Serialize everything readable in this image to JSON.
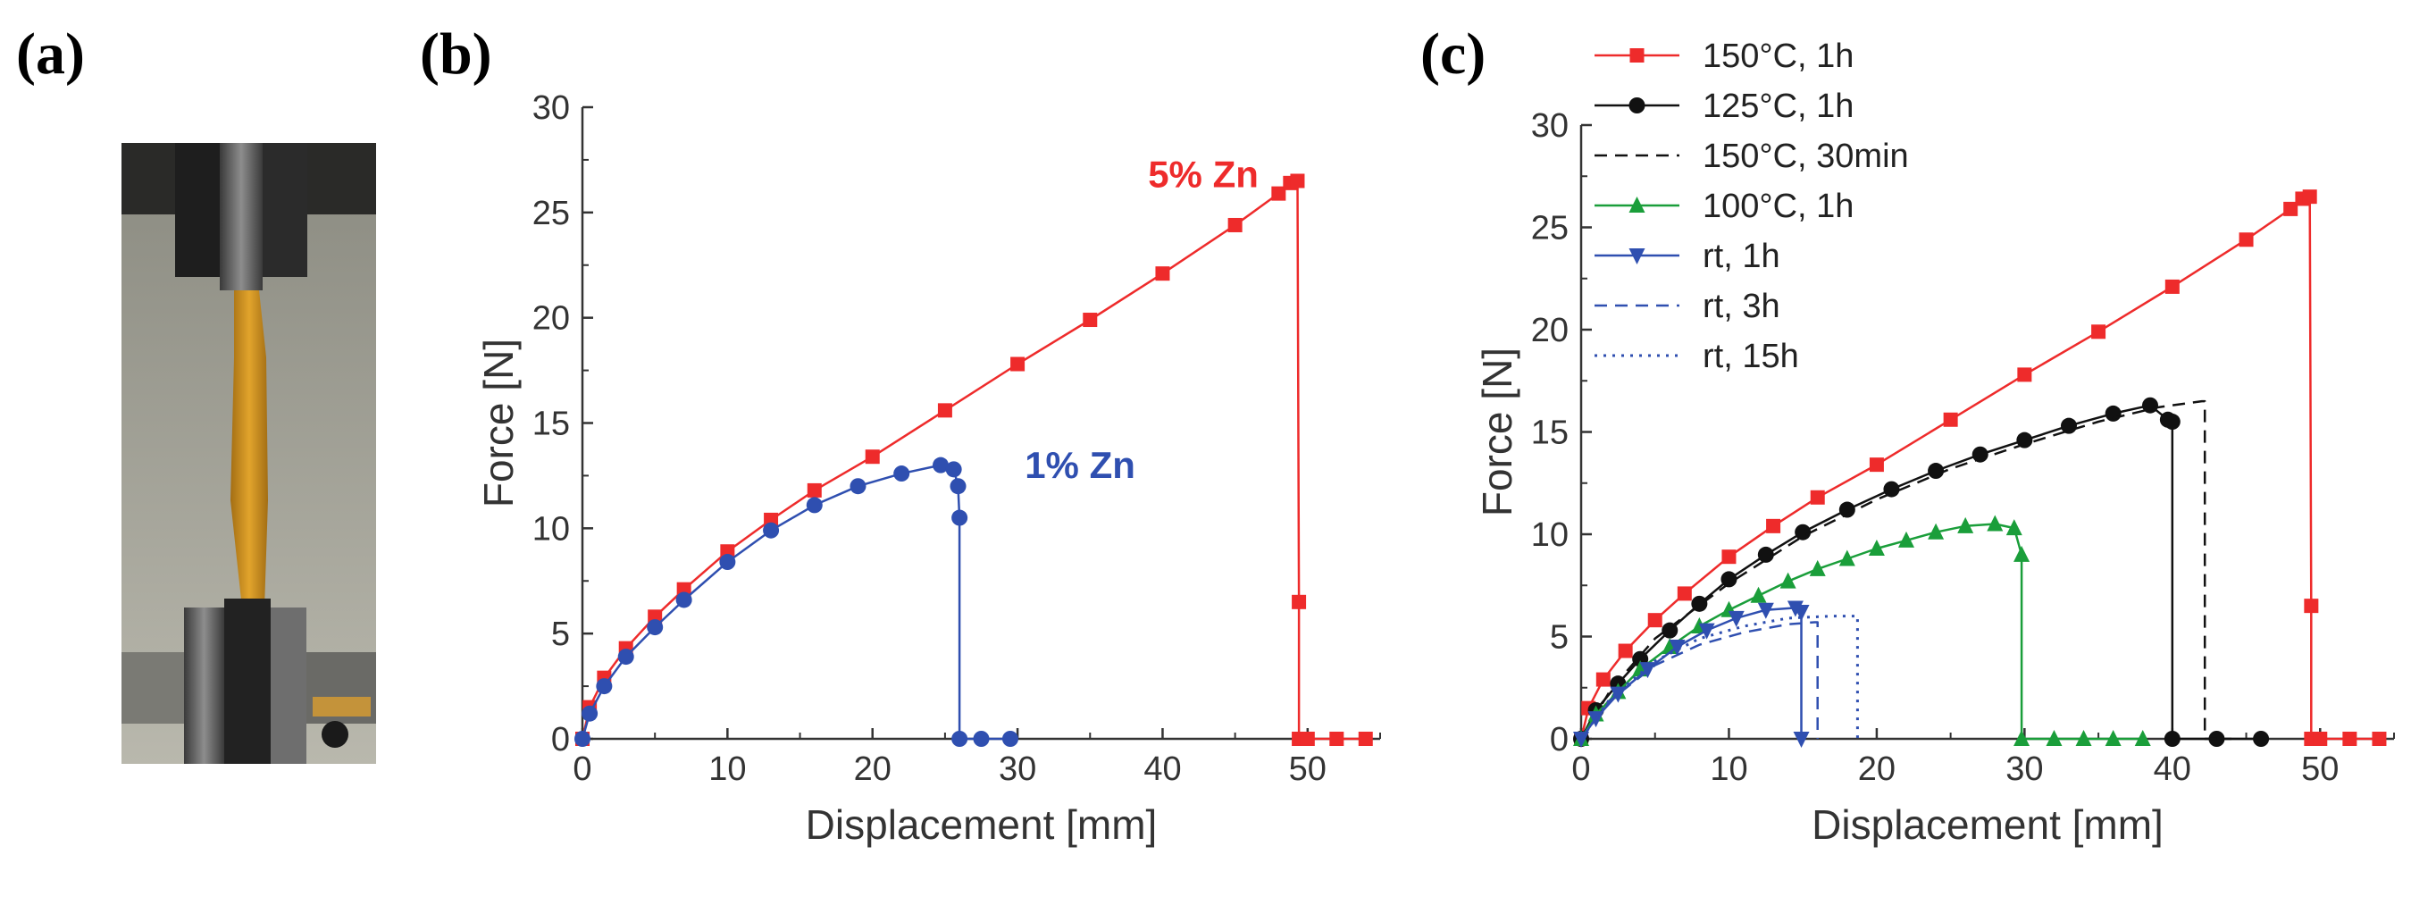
{
  "panel_labels": {
    "a": "(a)",
    "b": "(b)",
    "c": "(c)"
  },
  "photo": {
    "description_name": "tensile-specimen-photo"
  },
  "colors": {
    "red": "#ee2b2b",
    "blue": "#2f4fb0",
    "black": "#111111",
    "green": "#1a9e3a",
    "axis": "#333333"
  },
  "chart_data": [
    {
      "id": "b",
      "type": "line",
      "xlabel": "Displacement [mm]",
      "ylabel": "Force [N]",
      "xlim": [
        0,
        55
      ],
      "ylim": [
        0,
        30
      ],
      "xticks": [
        "0",
        "10",
        "20",
        "30",
        "40",
        "50"
      ],
      "yticks": [
        "0",
        "5",
        "10",
        "15",
        "20",
        "25",
        "30"
      ],
      "annotations": [
        {
          "text": "5% Zn",
          "x": 39,
          "y": 26.2,
          "color": "red"
        },
        {
          "text": "1% Zn",
          "x": 30.5,
          "y": 12.4,
          "color": "blue"
        }
      ],
      "series": [
        {
          "name": "5% Zn",
          "color": "red",
          "marker": "square",
          "dash": "solid",
          "x": [
            0,
            0.5,
            1.5,
            3,
            5,
            7,
            10,
            13,
            16,
            20,
            25,
            30,
            35,
            40,
            45,
            48,
            48.8,
            49.3,
            49.4,
            49.4,
            50,
            52,
            54
          ],
          "y": [
            0,
            1.5,
            2.9,
            4.3,
            5.8,
            7.1,
            8.9,
            10.4,
            11.8,
            13.4,
            15.6,
            17.8,
            19.9,
            22.1,
            24.4,
            25.9,
            26.4,
            26.5,
            6.5,
            0,
            0,
            0,
            0
          ]
        },
        {
          "name": "1% Zn",
          "color": "blue",
          "marker": "circle",
          "dash": "solid",
          "x": [
            0,
            0.5,
            1.5,
            3,
            5,
            7,
            10,
            13,
            16,
            19,
            22,
            24.7,
            25.6,
            25.9,
            26,
            26,
            27.5,
            29.5
          ],
          "y": [
            0,
            1.2,
            2.5,
            3.9,
            5.3,
            6.6,
            8.4,
            9.9,
            11.1,
            12.0,
            12.6,
            13.0,
            12.8,
            12.0,
            10.5,
            0,
            0,
            0
          ]
        }
      ]
    },
    {
      "id": "c",
      "type": "line",
      "xlabel": "Displacement [mm]",
      "ylabel": "Force [N]",
      "xlim": [
        0,
        55
      ],
      "ylim": [
        0,
        30
      ],
      "xticks": [
        "0",
        "10",
        "20",
        "30",
        "40",
        "50"
      ],
      "yticks": [
        "0",
        "5",
        "10",
        "15",
        "20",
        "25",
        "30"
      ],
      "legend_position": "top-left, outside above plot",
      "series": [
        {
          "name": "150°C, 1h",
          "color": "red",
          "marker": "square",
          "dash": "solid",
          "x": [
            0,
            0.5,
            1.5,
            3,
            5,
            7,
            10,
            13,
            16,
            20,
            25,
            30,
            35,
            40,
            45,
            48,
            48.8,
            49.3,
            49.4,
            49.4,
            50,
            52,
            54
          ],
          "y": [
            0,
            1.5,
            2.9,
            4.3,
            5.8,
            7.1,
            8.9,
            10.4,
            11.8,
            13.4,
            15.6,
            17.8,
            19.9,
            22.1,
            24.4,
            25.9,
            26.4,
            26.5,
            6.5,
            0,
            0,
            0,
            0
          ]
        },
        {
          "name": "125°C, 1h",
          "color": "black",
          "marker": "circle",
          "dash": "solid",
          "x": [
            0,
            1,
            2.5,
            4,
            6,
            8,
            10,
            12.5,
            15,
            18,
            21,
            24,
            27,
            30,
            33,
            36,
            38.5,
            39.7,
            40,
            40,
            43,
            46
          ],
          "y": [
            0,
            1.4,
            2.7,
            3.9,
            5.3,
            6.6,
            7.8,
            9.0,
            10.1,
            11.2,
            12.2,
            13.1,
            13.9,
            14.6,
            15.3,
            15.9,
            16.3,
            15.6,
            15.5,
            0,
            0,
            0
          ]
        },
        {
          "name": "150°C, 30min",
          "color": "black",
          "marker": "none",
          "dash": "dashed",
          "x": [
            0,
            2,
            5,
            10,
            15,
            20,
            25,
            30,
            35,
            39,
            42,
            42.2,
            42.2,
            44
          ],
          "y": [
            0,
            2.4,
            4.9,
            7.6,
            9.9,
            11.7,
            13.2,
            14.4,
            15.5,
            16.2,
            16.5,
            16.5,
            0,
            0
          ]
        },
        {
          "name": "100°C, 1h",
          "color": "green",
          "marker": "triangle-up",
          "dash": "solid",
          "x": [
            0,
            1,
            2.5,
            4,
            6,
            8,
            10,
            12,
            14,
            16,
            18,
            20,
            22,
            24,
            26,
            28,
            29.3,
            29.8,
            29.8,
            32,
            34,
            36,
            38
          ],
          "y": [
            0,
            1.2,
            2.3,
            3.4,
            4.5,
            5.5,
            6.3,
            7.0,
            7.7,
            8.3,
            8.8,
            9.3,
            9.7,
            10.1,
            10.4,
            10.5,
            10.3,
            9.0,
            0,
            0,
            0,
            0,
            0
          ]
        },
        {
          "name": "rt, 1h",
          "color": "blue",
          "marker": "triangle-down",
          "dash": "solid",
          "x": [
            0,
            1,
            2.5,
            4.5,
            6.5,
            8.5,
            10.5,
            12.5,
            14.5,
            14.9,
            14.9
          ],
          "y": [
            0,
            1.0,
            2.2,
            3.4,
            4.5,
            5.3,
            5.9,
            6.3,
            6.4,
            6.2,
            0
          ]
        },
        {
          "name": "rt, 3h",
          "color": "blue",
          "marker": "none",
          "dash": "dashed",
          "x": [
            0,
            2,
            5,
            8,
            11,
            14,
            15.8,
            16,
            16
          ],
          "y": [
            0,
            1.9,
            3.6,
            4.6,
            5.2,
            5.6,
            5.7,
            5.7,
            0
          ]
        },
        {
          "name": "rt, 15h",
          "color": "blue",
          "marker": "none",
          "dash": "dotted",
          "x": [
            0,
            2,
            5,
            8,
            11,
            14,
            17,
            18.6,
            18.7,
            18.7
          ],
          "y": [
            0,
            2.0,
            3.8,
            4.9,
            5.5,
            5.9,
            6.0,
            6.0,
            6.0,
            0
          ]
        }
      ]
    }
  ]
}
